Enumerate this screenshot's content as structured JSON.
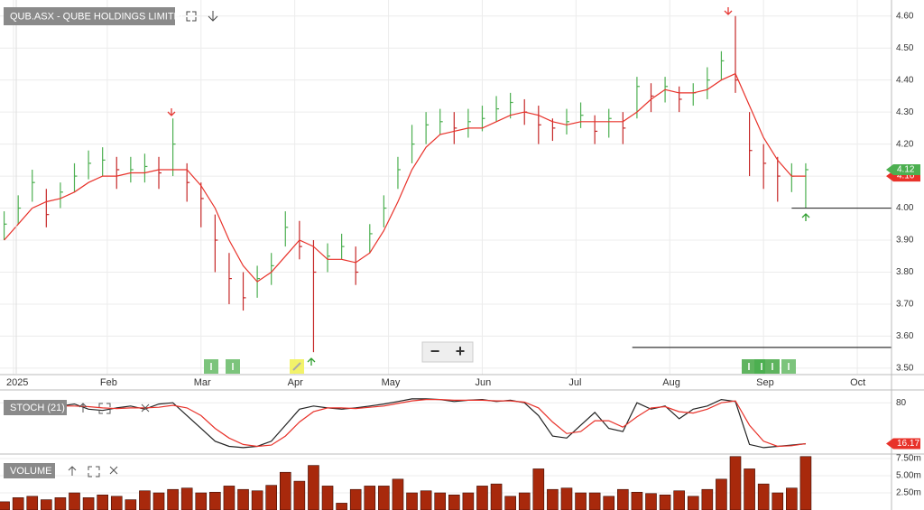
{
  "chart_data": [
    {
      "type": "hlc",
      "title": "QUB.ASX - QUBE HOLDINGS LIMITED",
      "up_color": "#4caf50",
      "down_color": "#c62828",
      "grid": true,
      "xlim": [
        -0.144,
        9.365
      ],
      "xticks": [
        {
          "value": 0,
          "label": "2025"
        },
        {
          "value": 1,
          "label": "Feb"
        },
        {
          "value": 2,
          "label": "Mar"
        },
        {
          "value": 3,
          "label": "Apr"
        },
        {
          "value": 4,
          "label": "May"
        },
        {
          "value": 5,
          "label": "Jun"
        },
        {
          "value": 6,
          "label": "Jul"
        },
        {
          "value": 7,
          "label": "Aug"
        },
        {
          "value": 8,
          "label": "Sep"
        },
        {
          "value": 9,
          "label": "Oct"
        }
      ],
      "ylim": [
        3.48,
        4.65
      ],
      "yticks": [
        {
          "value": 3.5,
          "label": "3.50"
        },
        {
          "value": 3.6,
          "label": "3.60"
        },
        {
          "value": 3.7,
          "label": "3.70"
        },
        {
          "value": 3.8,
          "label": "3.80"
        },
        {
          "value": 3.9,
          "label": "3.90"
        },
        {
          "value": 4.0,
          "label": "4.00"
        },
        {
          "value": 4.1,
          "label": "4.10"
        },
        {
          "value": 4.2,
          "label": "4.20"
        },
        {
          "value": 4.3,
          "label": "4.30"
        },
        {
          "value": 4.4,
          "label": "4.40"
        },
        {
          "value": 4.5,
          "label": "4.50"
        },
        {
          "value": 4.6,
          "label": "4.60"
        }
      ],
      "x": [
        -0.1,
        0.05,
        0.2,
        0.35,
        0.5,
        0.65,
        0.8,
        0.95,
        1.1,
        1.25,
        1.4,
        1.55,
        1.7,
        1.85,
        2.0,
        2.15,
        2.3,
        2.45,
        2.6,
        2.75,
        2.9,
        3.05,
        3.2,
        3.35,
        3.5,
        3.65,
        3.8,
        3.95,
        4.1,
        4.25,
        4.4,
        4.55,
        4.7,
        4.85,
        5.0,
        5.15,
        5.3,
        5.45,
        5.6,
        5.75,
        5.9,
        6.05,
        6.2,
        6.35,
        6.5,
        6.65,
        6.8,
        6.95,
        7.1,
        7.25,
        7.4,
        7.55,
        7.7,
        7.85,
        8.0,
        8.15,
        8.3,
        8.45
      ],
      "high": [
        3.99,
        4.04,
        4.12,
        4.06,
        4.08,
        4.14,
        4.18,
        4.19,
        4.16,
        4.16,
        4.17,
        4.16,
        4.28,
        4.14,
        4.08,
        3.98,
        3.86,
        3.8,
        3.82,
        3.86,
        3.99,
        3.96,
        3.9,
        3.89,
        3.92,
        3.88,
        3.95,
        4.04,
        4.16,
        4.26,
        4.3,
        4.31,
        4.3,
        4.31,
        4.32,
        4.35,
        4.36,
        4.34,
        4.32,
        4.28,
        4.31,
        4.33,
        4.29,
        4.31,
        4.3,
        4.41,
        4.39,
        4.41,
        4.38,
        4.39,
        4.44,
        4.49,
        4.6,
        4.3,
        4.2,
        4.16,
        4.14,
        4.14
      ],
      "low": [
        3.9,
        3.95,
        4.02,
        3.94,
        4.0,
        4.05,
        4.09,
        4.1,
        4.06,
        4.08,
        4.08,
        4.06,
        4.1,
        4.02,
        3.94,
        3.8,
        3.7,
        3.68,
        3.72,
        3.76,
        3.88,
        3.84,
        3.55,
        3.8,
        3.84,
        3.76,
        3.86,
        3.94,
        4.06,
        4.14,
        4.2,
        4.23,
        4.2,
        4.22,
        4.24,
        4.27,
        4.28,
        4.26,
        4.2,
        4.21,
        4.23,
        4.25,
        4.2,
        4.22,
        4.2,
        4.28,
        4.3,
        4.33,
        4.3,
        4.32,
        4.34,
        4.4,
        4.36,
        4.1,
        4.06,
        4.02,
        4.05,
        4.0
      ],
      "close": [
        3.95,
        4.0,
        4.08,
        3.98,
        4.05,
        4.1,
        4.14,
        4.15,
        4.12,
        4.12,
        4.13,
        4.11,
        4.2,
        4.08,
        4.03,
        3.9,
        3.78,
        3.72,
        3.78,
        3.82,
        3.94,
        3.88,
        3.8,
        3.85,
        3.88,
        3.8,
        3.92,
        4.0,
        4.12,
        4.2,
        4.26,
        4.27,
        4.25,
        4.27,
        4.28,
        4.31,
        4.33,
        4.3,
        4.26,
        4.25,
        4.27,
        4.29,
        4.24,
        4.28,
        4.25,
        4.38,
        4.35,
        4.38,
        4.34,
        4.36,
        4.4,
        4.46,
        4.4,
        4.18,
        4.14,
        4.1,
        4.1,
        4.12
      ],
      "series": [
        {
          "color": "#e8322a",
          "values": [
            3.9,
            3.95,
            4.0,
            4.02,
            4.03,
            4.05,
            4.08,
            4.1,
            4.1,
            4.11,
            4.11,
            4.12,
            4.12,
            4.12,
            4.07,
            4.0,
            3.9,
            3.82,
            3.77,
            3.8,
            3.85,
            3.9,
            3.88,
            3.84,
            3.84,
            3.83,
            3.86,
            3.93,
            4.02,
            4.12,
            4.19,
            4.23,
            4.24,
            4.25,
            4.25,
            4.27,
            4.29,
            4.3,
            4.29,
            4.27,
            4.26,
            4.27,
            4.27,
            4.27,
            4.27,
            4.3,
            4.34,
            4.37,
            4.36,
            4.36,
            4.37,
            4.4,
            4.42,
            4.32,
            4.22,
            4.15,
            4.1,
            4.1
          ],
          "value_labels": [
            null,
            null,
            null,
            null,
            null,
            null,
            null,
            null,
            null,
            null,
            null,
            null,
            null,
            null,
            null,
            null,
            null,
            null,
            null,
            null,
            null,
            null,
            null,
            null,
            null,
            null,
            null,
            null,
            null,
            null,
            null,
            null,
            null,
            null,
            null,
            null,
            null,
            null,
            null,
            null,
            null,
            null,
            null,
            null,
            null,
            null,
            null,
            null,
            null,
            null,
            null,
            null,
            null,
            null,
            null,
            null,
            null,
            "4.10"
          ]
        }
      ],
      "levels": [
        {
          "value": 4.0,
          "from": 8.3
        },
        {
          "value": 3.565,
          "from": 6.6
        }
      ]
    },
    {
      "type": "line",
      "title": "STOCH (21)",
      "ylim": [
        0,
        100
      ],
      "yticks": [
        80
      ],
      "grid": true,
      "series": [
        {
          "color": "#222222",
          "values": [
            70,
            78,
            80,
            72,
            75,
            78,
            70,
            68,
            72,
            75,
            70,
            78,
            80,
            60,
            40,
            20,
            12,
            10,
            12,
            20,
            45,
            70,
            75,
            72,
            70,
            72,
            75,
            78,
            82,
            86,
            86,
            85,
            82,
            84,
            85,
            82,
            84,
            80,
            60,
            28,
            25,
            45,
            65,
            40,
            35,
            80,
            70,
            75,
            55,
            70,
            75,
            85,
            82,
            15,
            10,
            12,
            14,
            16
          ]
        },
        {
          "color": "#e8322a",
          "last_value_badge": true,
          "values": [
            72,
            74,
            77,
            76,
            75,
            75,
            74,
            72,
            71,
            72,
            72,
            73,
            76,
            72,
            60,
            40,
            25,
            15,
            12,
            14,
            28,
            50,
            66,
            72,
            72,
            71,
            73,
            75,
            79,
            83,
            85,
            85,
            84,
            84,
            84,
            83,
            83,
            81,
            72,
            50,
            32,
            35,
            52,
            52,
            42,
            58,
            72,
            74,
            66,
            64,
            70,
            80,
            83,
            45,
            20,
            12,
            13,
            16.17
          ]
        }
      ]
    },
    {
      "type": "bar",
      "title": "VOLUME",
      "ylim": [
        0,
        7900000
      ],
      "color": "#a8290c",
      "grid": true,
      "yticks": [
        {
          "value": 2500000,
          "label": "2.50m"
        },
        {
          "value": 5000000,
          "label": "5.00m"
        },
        {
          "value": 7500000,
          "label": "7.50m"
        }
      ],
      "values": [
        1200000,
        1800000,
        2000000,
        1500000,
        1800000,
        2500000,
        1800000,
        2200000,
        2000000,
        1500000,
        2800000,
        2500000,
        3000000,
        3200000,
        2500000,
        2600000,
        3500000,
        3000000,
        2800000,
        3600000,
        5500000,
        4200000,
        6500000,
        3500000,
        1000000,
        3000000,
        3500000,
        3500000,
        4500000,
        2500000,
        2800000,
        2500000,
        2200000,
        2500000,
        3500000,
        3800000,
        2000000,
        2500000,
        6000000,
        3000000,
        3200000,
        2500000,
        2500000,
        2000000,
        3000000,
        2600000,
        2400000,
        2200000,
        2800000,
        2000000,
        3000000,
        4500000,
        7800000,
        6000000,
        3800000,
        2500000,
        3200000,
        7800000
      ]
    }
  ],
  "ui": {
    "zoom_out": "−",
    "zoom_in": "+"
  }
}
